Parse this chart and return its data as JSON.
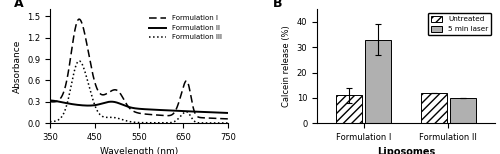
{
  "panel_A": {
    "xlabel": "Wavelength (nm)",
    "ylabel": "Absorbance",
    "xlim": [
      350,
      750
    ],
    "ylim": [
      0,
      1.6
    ],
    "yticks": [
      0,
      0.3,
      0.6,
      0.9,
      1.2,
      1.5
    ],
    "xticks": [
      350,
      450,
      550,
      650,
      750
    ],
    "legend_labels": [
      "Formulation I",
      "Formulation II",
      "Formulation III"
    ]
  },
  "panel_B": {
    "xlabel": "Liposomes",
    "ylabel": "Calcein release (%)",
    "ylim": [
      0,
      45
    ],
    "yticks": [
      0,
      10,
      20,
      30,
      40
    ],
    "categories": [
      "Formulation I",
      "Formulation II"
    ],
    "untreated": [
      11,
      12
    ],
    "laser": [
      33,
      10
    ],
    "untreated_err": [
      3,
      0
    ],
    "laser_err": [
      6,
      0
    ],
    "legend_labels": [
      "Untreated",
      "5 min laser"
    ]
  }
}
